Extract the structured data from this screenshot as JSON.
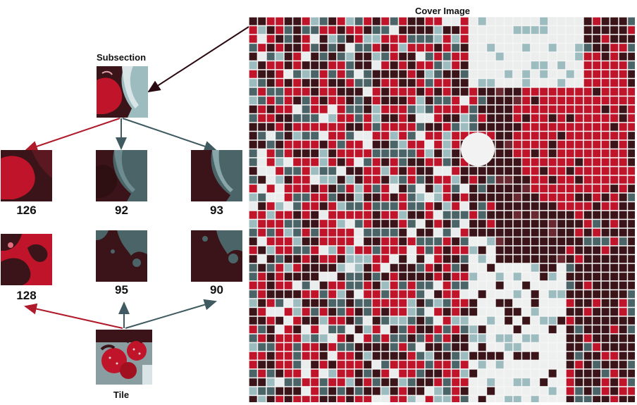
{
  "labels": {
    "subsection": "Subsection",
    "cover_image": "Cover Image",
    "tile": "Tile"
  },
  "scores": [
    {
      "value": "126",
      "tone": "red"
    },
    {
      "value": "92",
      "tone": "teal"
    },
    {
      "value": "93",
      "tone": "teal"
    },
    {
      "value": "128",
      "tone": "red"
    },
    {
      "value": "95",
      "tone": "teal"
    },
    {
      "value": "90",
      "tone": "teal"
    }
  ],
  "colors": {
    "red": "#c0142a",
    "dark_maroon": "#3a1418",
    "teal": "#4a6468",
    "light_teal": "#9dbcc0",
    "arrow_red": "#b01a2a",
    "arrow_teal": "#3f5a60",
    "arrow_dark": "#2a0a10"
  }
}
